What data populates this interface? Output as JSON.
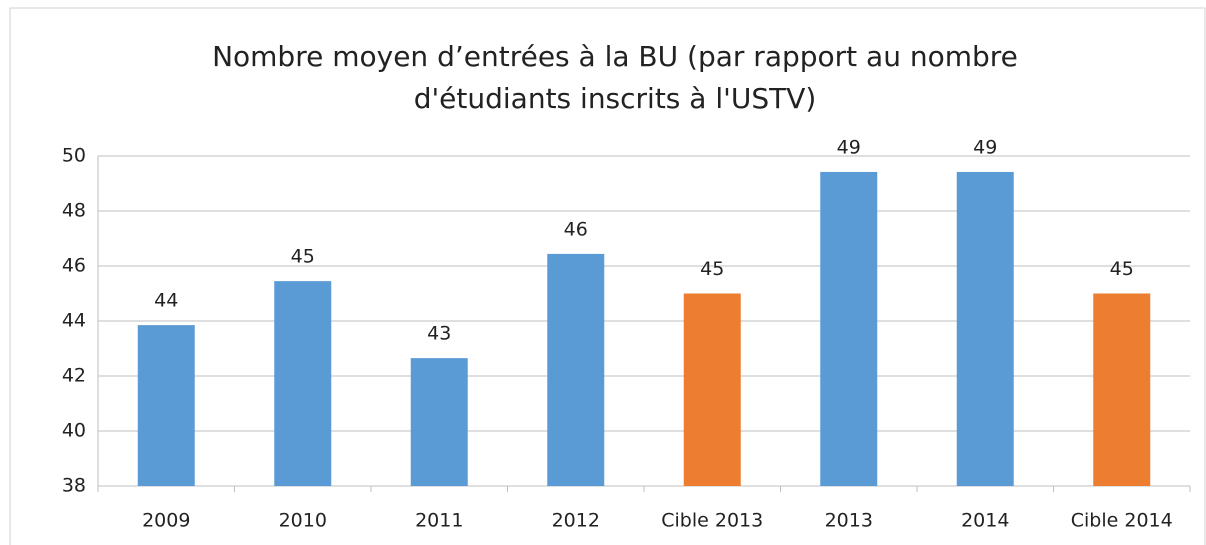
{
  "chart_data": {
    "type": "bar",
    "title": [
      "Nombre moyen d’entrées  à la BU (par rapport au nombre",
      "d'étudiants inscrits à l'USTV)"
    ],
    "categories": [
      "2009",
      "2010",
      "2011",
      "2012",
      "Cible 2013",
      "2013",
      "2014",
      "Cible 2014"
    ],
    "values": [
      43.85,
      45.45,
      42.65,
      46.44,
      45,
      49.42,
      49.42,
      45
    ],
    "value_labels": [
      "44",
      "45",
      "43",
      "46",
      "45",
      "49",
      "49",
      "45"
    ],
    "colors": [
      "#5b9bd5",
      "#5b9bd5",
      "#5b9bd5",
      "#5b9bd5",
      "#ed7d31",
      "#5b9bd5",
      "#5b9bd5",
      "#ed7d31"
    ],
    "ylim": [
      38,
      50
    ],
    "yticks": [
      38,
      40,
      42,
      44,
      46,
      48,
      50
    ],
    "grid": true
  }
}
